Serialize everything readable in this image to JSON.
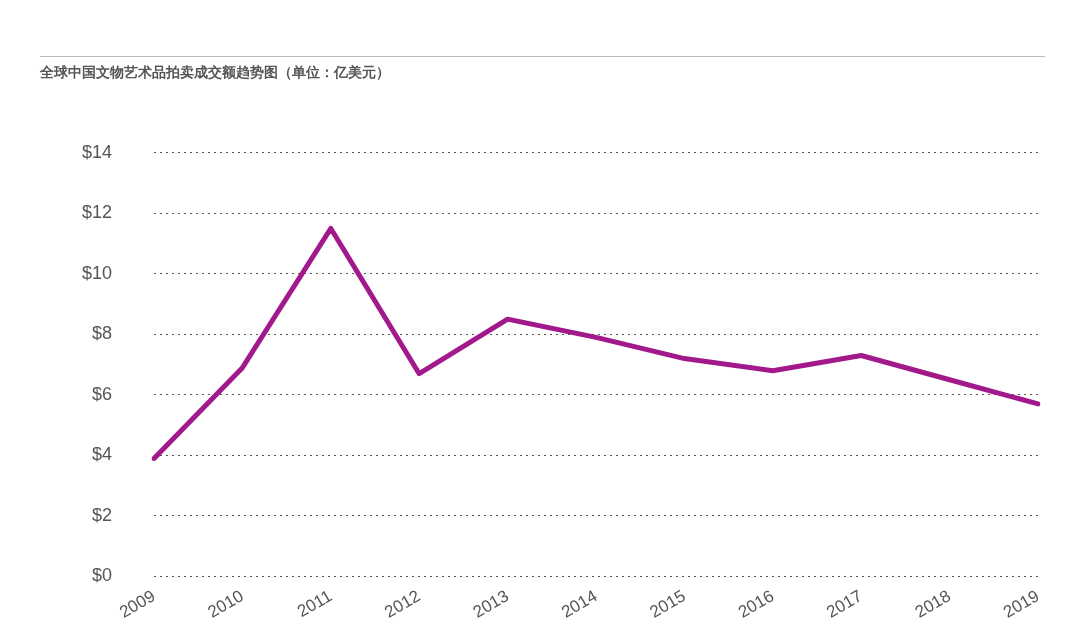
{
  "chart_data": {
    "type": "line",
    "title": "全球中国文物艺术品拍卖成交额趋势图（单位：亿美元）",
    "categories": [
      "2009",
      "2010",
      "2011",
      "2012",
      "2013",
      "2014",
      "2015",
      "2016",
      "2017",
      "2018",
      "2019"
    ],
    "series": [
      {
        "color": "#a2198c",
        "values": [
          3.9,
          6.9,
          11.5,
          6.7,
          8.5,
          7.9,
          7.2,
          6.8,
          7.3,
          6.5,
          5.7
        ]
      }
    ],
    "ylim": [
      0,
      14
    ],
    "yticks": [
      {
        "value": 0,
        "label": "$0"
      },
      {
        "value": 2,
        "label": "$2"
      },
      {
        "value": 4,
        "label": "$4"
      },
      {
        "value": 6,
        "label": "$6"
      },
      {
        "value": 8,
        "label": "$8"
      },
      {
        "value": 10,
        "label": "$10"
      },
      {
        "value": 12,
        "label": "$12"
      },
      {
        "value": 14,
        "label": "$14"
      }
    ],
    "grid": "y",
    "legend": false,
    "marker": "none",
    "line_style": "solid"
  }
}
